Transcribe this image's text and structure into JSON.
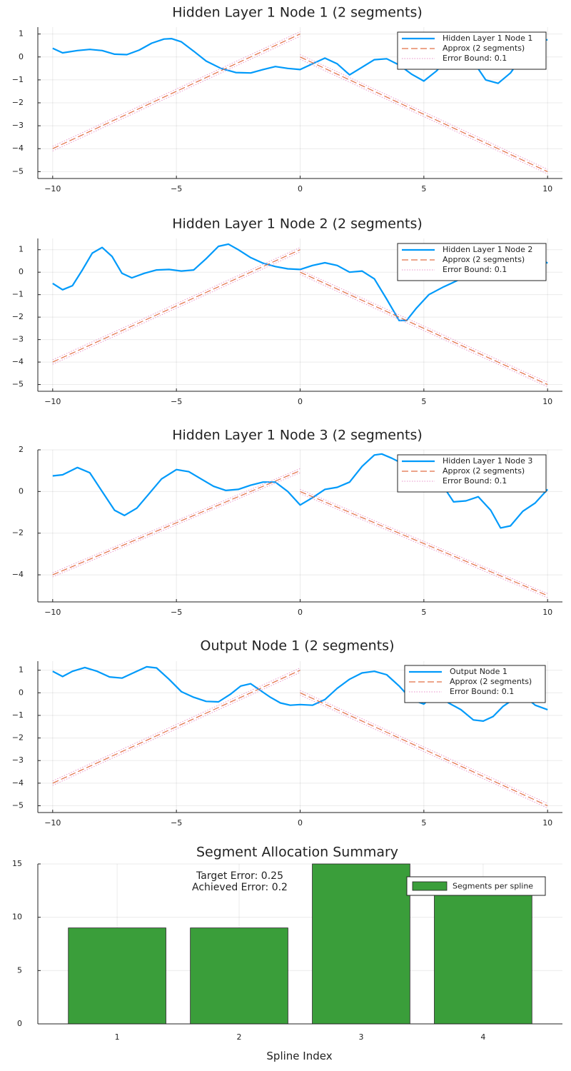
{
  "chart_data": [
    {
      "type": "line",
      "title": "Hidden Layer 1 Node 1 (2 segments)",
      "xlim": [
        -10.6,
        10.6
      ],
      "ylim": [
        -5.3,
        1.3
      ],
      "xticks": [
        -10,
        -5,
        0,
        5,
        10
      ],
      "xtick_labels": [
        "−10",
        "−5",
        "0",
        "5",
        "10"
      ],
      "yticks": [
        1,
        0,
        -1,
        -2,
        -3,
        -4,
        -5
      ],
      "ytick_labels": [
        "1",
        "0",
        "−1",
        "−2",
        "−3",
        "−4",
        "−5"
      ],
      "grid": true,
      "legend_position": "top-right",
      "series": [
        {
          "name": "Hidden Layer 1 Node 1",
          "color": "#009AFA",
          "style": "solid",
          "x": [
            -10,
            -9.6,
            -9,
            -8.5,
            -8,
            -7.5,
            -7,
            -6.5,
            -6,
            -5.5,
            -5.2,
            -4.8,
            -4.3,
            -3.8,
            -3.2,
            -2.6,
            -2.0,
            -1.5,
            -1.0,
            -0.5,
            0,
            0.5,
            1.0,
            1.5,
            2.0,
            2.5,
            3.0,
            3.5,
            4.0,
            4.5,
            5.0,
            5.5,
            6.0,
            6.5,
            7.0,
            7.5,
            8.0,
            8.5,
            9.0,
            9.5,
            10
          ],
          "y": [
            0.38,
            0.18,
            0.28,
            0.33,
            0.28,
            0.12,
            0.1,
            0.3,
            0.6,
            0.78,
            0.8,
            0.66,
            0.25,
            -0.18,
            -0.5,
            -0.68,
            -0.7,
            -0.55,
            -0.42,
            -0.5,
            -0.55,
            -0.3,
            -0.05,
            -0.3,
            -0.78,
            -0.45,
            -0.12,
            -0.08,
            -0.35,
            -0.75,
            -1.05,
            -0.62,
            -0.05,
            0.1,
            -0.2,
            -1.0,
            -1.15,
            -0.7,
            0.05,
            0.7,
            0.75
          ]
        },
        {
          "name": "Approx (2 segments)",
          "color": "#E26F46",
          "style": "dashed",
          "x": [
            -10,
            0,
            null,
            0,
            10
          ],
          "y": [
            -4,
            1,
            null,
            0,
            -5
          ]
        },
        {
          "name": "Error Bound: 0.1",
          "color": "#E790C8",
          "style": "dotted",
          "x": [
            -10,
            0,
            null,
            0,
            10,
            null,
            -10,
            0,
            null,
            0,
            10
          ],
          "y": [
            -3.9,
            1.1,
            null,
            0.1,
            -4.9,
            null,
            -4.1,
            0.9,
            null,
            -0.1,
            -5.1
          ]
        }
      ]
    },
    {
      "type": "line",
      "title": "Hidden Layer 1 Node 2 (2 segments)",
      "xlim": [
        -10.6,
        10.6
      ],
      "ylim": [
        -5.3,
        1.5
      ],
      "xticks": [
        -10,
        -5,
        0,
        5,
        10
      ],
      "xtick_labels": [
        "−10",
        "−5",
        "0",
        "5",
        "10"
      ],
      "yticks": [
        1,
        0,
        -1,
        -2,
        -3,
        -4,
        -5
      ],
      "ytick_labels": [
        "1",
        "0",
        "−1",
        "−2",
        "−3",
        "−4",
        "−5"
      ],
      "grid": true,
      "legend_position": "top-right",
      "series": [
        {
          "name": "Hidden Layer 1 Node 2",
          "color": "#009AFA",
          "style": "solid",
          "x": [
            -10,
            -9.6,
            -9.2,
            -8.8,
            -8.4,
            -8.0,
            -7.6,
            -7.2,
            -6.8,
            -6.3,
            -5.8,
            -5.3,
            -4.8,
            -4.3,
            -3.8,
            -3.3,
            -2.9,
            -2.5,
            -2.0,
            -1.5,
            -1.0,
            -0.5,
            0,
            0.5,
            1.0,
            1.5,
            2.0,
            2.5,
            3.0,
            3.5,
            4.0,
            4.3,
            4.7,
            5.2,
            5.8,
            6.3,
            6.8,
            7.3,
            7.8,
            8.3,
            8.8,
            9.3,
            9.7,
            10
          ],
          "y": [
            -0.5,
            -0.78,
            -0.6,
            0.1,
            0.85,
            1.1,
            0.7,
            -0.05,
            -0.25,
            -0.05,
            0.1,
            0.12,
            0.05,
            0.1,
            0.6,
            1.15,
            1.25,
            1.0,
            0.65,
            0.4,
            0.25,
            0.15,
            0.12,
            0.3,
            0.42,
            0.3,
            0.0,
            0.05,
            -0.3,
            -1.2,
            -2.15,
            -2.15,
            -1.6,
            -1.0,
            -0.65,
            -0.4,
            -0.1,
            0.2,
            0.4,
            0.1,
            -0.3,
            0.1,
            0.6,
            0.4
          ]
        },
        {
          "name": "Approx (2 segments)",
          "color": "#E26F46",
          "style": "dashed",
          "x": [
            -10,
            0,
            null,
            0,
            10
          ],
          "y": [
            -4,
            1,
            null,
            0,
            -5
          ]
        },
        {
          "name": "Error Bound: 0.1",
          "color": "#E790C8",
          "style": "dotted",
          "x": [
            -10,
            0,
            null,
            0,
            10,
            null,
            -10,
            0,
            null,
            0,
            10
          ],
          "y": [
            -3.9,
            1.1,
            null,
            0.1,
            -4.9,
            null,
            -4.1,
            0.9,
            null,
            -0.1,
            -5.1
          ]
        }
      ]
    },
    {
      "type": "line",
      "title": "Hidden Layer 1 Node 3 (2 segments)",
      "xlim": [
        -10.6,
        10.6
      ],
      "ylim": [
        -5.3,
        2.0
      ],
      "xticks": [
        -10,
        -5,
        0,
        5,
        10
      ],
      "xtick_labels": [
        "−10",
        "−5",
        "0",
        "5",
        "10"
      ],
      "yticks": [
        2,
        0,
        -2,
        -4
      ],
      "ytick_labels": [
        "2",
        "0",
        "−2",
        "−4"
      ],
      "grid": true,
      "legend_position": "top-right",
      "series": [
        {
          "name": "Hidden Layer 1 Node 3",
          "color": "#009AFA",
          "style": "solid",
          "x": [
            -10,
            -9.6,
            -9.0,
            -8.5,
            -8.0,
            -7.5,
            -7.1,
            -6.6,
            -6.1,
            -5.6,
            -5.0,
            -4.5,
            -4.0,
            -3.5,
            -3.0,
            -2.5,
            -2.0,
            -1.5,
            -1.0,
            -0.5,
            0,
            0.5,
            1.0,
            1.5,
            2.0,
            2.5,
            3.0,
            3.3,
            3.7,
            4.2,
            4.7,
            5.2,
            5.7,
            6.2,
            6.7,
            7.2,
            7.7,
            8.1,
            8.5,
            9.0,
            9.5,
            10
          ],
          "y": [
            0.75,
            0.8,
            1.15,
            0.9,
            0.0,
            -0.9,
            -1.15,
            -0.8,
            -0.1,
            0.6,
            1.05,
            0.95,
            0.6,
            0.25,
            0.05,
            0.1,
            0.3,
            0.45,
            0.45,
            0.0,
            -0.65,
            -0.3,
            0.1,
            0.2,
            0.45,
            1.2,
            1.75,
            1.8,
            1.6,
            1.3,
            1.0,
            0.95,
            0.4,
            -0.5,
            -0.45,
            -0.25,
            -0.9,
            -1.75,
            -1.65,
            -0.95,
            -0.55,
            0.1
          ]
        },
        {
          "name": "Approx (2 segments)",
          "color": "#E26F46",
          "style": "dashed",
          "x": [
            -10,
            0,
            null,
            0,
            10
          ],
          "y": [
            -4,
            1,
            null,
            0,
            -5
          ]
        },
        {
          "name": "Error Bound: 0.1",
          "color": "#E790C8",
          "style": "dotted",
          "x": [
            -10,
            0,
            null,
            0,
            10,
            null,
            -10,
            0,
            null,
            0,
            10
          ],
          "y": [
            -3.9,
            1.1,
            null,
            0.1,
            -4.9,
            null,
            -4.1,
            0.9,
            null,
            -0.1,
            -5.1
          ]
        }
      ]
    },
    {
      "type": "line",
      "title": "Output Node 1 (2 segments)",
      "xlim": [
        -10.6,
        10.6
      ],
      "ylim": [
        -5.3,
        1.4
      ],
      "xticks": [
        -10,
        -5,
        0,
        5,
        10
      ],
      "xtick_labels": [
        "−10",
        "−5",
        "0",
        "5",
        "10"
      ],
      "yticks": [
        1,
        0,
        -1,
        -2,
        -3,
        -4,
        -5
      ],
      "ytick_labels": [
        "1",
        "0",
        "−1",
        "−2",
        "−3",
        "−4",
        "−5"
      ],
      "grid": true,
      "legend_position": "top-right",
      "series": [
        {
          "name": "Output Node 1",
          "color": "#009AFA",
          "style": "solid",
          "x": [
            -10,
            -9.6,
            -9.2,
            -8.7,
            -8.2,
            -7.7,
            -7.2,
            -6.7,
            -6.2,
            -5.8,
            -5.3,
            -4.8,
            -4.3,
            -3.8,
            -3.3,
            -2.8,
            -2.4,
            -2.0,
            -1.6,
            -1.2,
            -0.8,
            -0.4,
            0,
            0.5,
            1.0,
            1.5,
            2.0,
            2.5,
            3.0,
            3.5,
            4.0,
            4.5,
            5.0,
            5.5,
            6.0,
            6.5,
            7.0,
            7.4,
            7.8,
            8.2,
            8.6,
            9.0,
            9.5,
            10
          ],
          "y": [
            0.95,
            0.72,
            0.95,
            1.12,
            0.95,
            0.7,
            0.65,
            0.9,
            1.15,
            1.1,
            0.6,
            0.05,
            -0.2,
            -0.38,
            -0.4,
            -0.05,
            0.3,
            0.4,
            0.1,
            -0.2,
            -0.45,
            -0.55,
            -0.52,
            -0.55,
            -0.3,
            0.2,
            0.6,
            0.88,
            0.95,
            0.8,
            0.3,
            -0.3,
            -0.5,
            0.0,
            -0.45,
            -0.75,
            -1.2,
            -1.25,
            -1.05,
            -0.6,
            -0.3,
            -0.1,
            -0.55,
            -0.75
          ]
        },
        {
          "name": "Approx (2 segments)",
          "color": "#E26F46",
          "style": "dashed",
          "x": [
            -10,
            0,
            null,
            0,
            10
          ],
          "y": [
            -4,
            1,
            null,
            0,
            -5
          ]
        },
        {
          "name": "Error Bound: 0.1",
          "color": "#E790C8",
          "style": "dotted",
          "x": [
            -10,
            0,
            null,
            0,
            10,
            null,
            -10,
            0,
            null,
            0,
            10
          ],
          "y": [
            -3.9,
            1.1,
            null,
            0.1,
            -4.9,
            null,
            -4.1,
            0.9,
            null,
            -0.1,
            -5.1
          ]
        }
      ]
    },
    {
      "type": "bar",
      "title": "Segment Allocation Summary",
      "xlabel": "Spline Index",
      "categories": [
        "1",
        "2",
        "3",
        "4"
      ],
      "xlim": [
        0.35,
        4.65
      ],
      "ylim": [
        0,
        15
      ],
      "yticks": [
        0,
        5,
        10,
        15
      ],
      "ytick_labels": [
        "0",
        "5",
        "10",
        "15"
      ],
      "grid": true,
      "legend_position": "top-right",
      "series": [
        {
          "name": "Segments per spline",
          "color": "#3A9E3A",
          "values": [
            9,
            9,
            15,
            13
          ]
        }
      ],
      "annotations": [
        "Target Error: 0.25",
        "Achieved Error: 0.2"
      ]
    }
  ]
}
